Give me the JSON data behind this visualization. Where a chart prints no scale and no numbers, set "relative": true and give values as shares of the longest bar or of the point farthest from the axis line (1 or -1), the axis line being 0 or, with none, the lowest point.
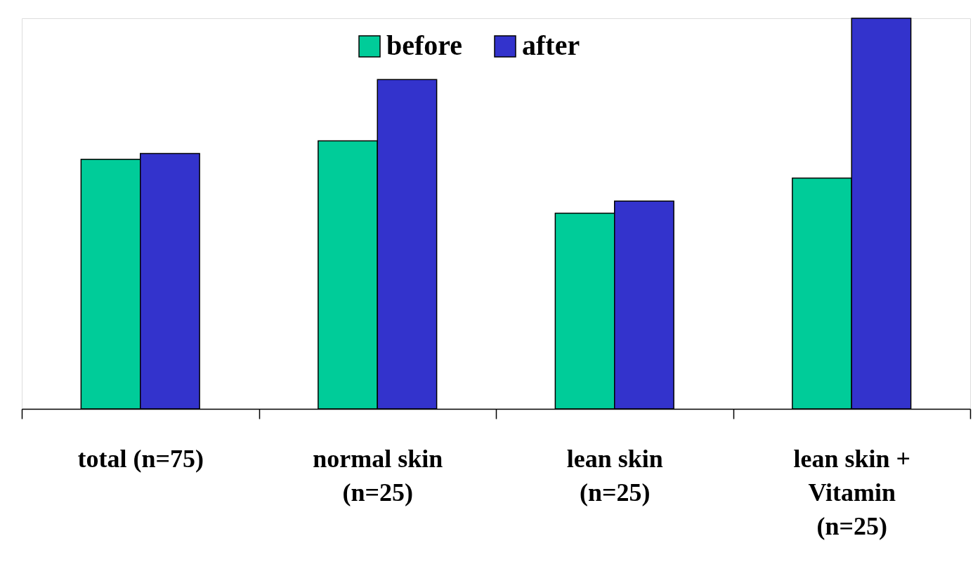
{
  "chart_data": {
    "type": "bar",
    "relative": true,
    "categories": [
      "total (n=75)",
      "normal skin\n(n=25)",
      "lean skin\n(n=25)",
      "lean skin +\nVitamin\n(n=25)"
    ],
    "series": [
      {
        "name": "before",
        "color": "#00cc99",
        "values": [
          0.639,
          0.686,
          0.501,
          0.591
        ]
      },
      {
        "name": "after",
        "color": "#3333cc",
        "values": [
          0.654,
          0.843,
          0.532,
          1
        ]
      }
    ],
    "legend": "top"
  }
}
